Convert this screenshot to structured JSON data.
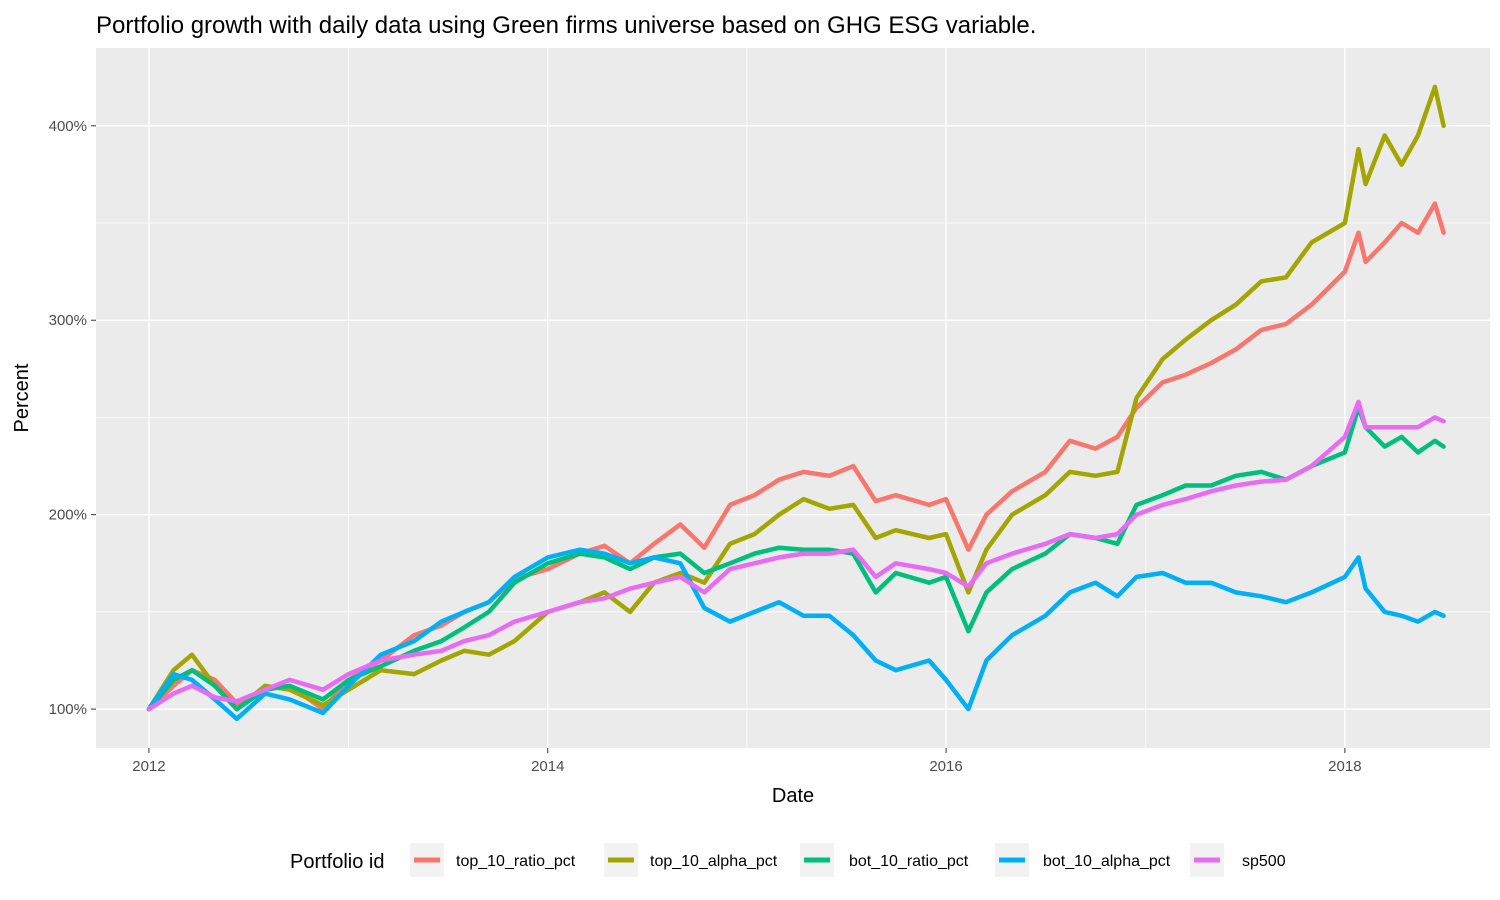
{
  "chart_data": {
    "type": "line",
    "title": "Portfolio growth with daily data using Green firms universe based on GHG ESG variable.",
    "xlabel": "Date",
    "ylabel": "Percent",
    "x_ticks": [
      "2012",
      "2014",
      "2016",
      "2018"
    ],
    "y_ticks": [
      "100%",
      "200%",
      "300%",
      "400%"
    ],
    "xlim": [
      "2011-09-26",
      "2018-09-24"
    ],
    "ylim": [
      80,
      440
    ],
    "grid": true,
    "legend_position": "bottom",
    "legend_title": "Portfolio id",
    "series": [
      {
        "name": "top_10_ratio_pct",
        "color": "#F8766D",
        "x": [
          "2012-01-01",
          "2012-02-15",
          "2012-03-20",
          "2012-05-01",
          "2012-06-10",
          "2012-08-01",
          "2012-09-15",
          "2012-11-15",
          "2013-01-01",
          "2013-03-01",
          "2013-05-01",
          "2013-06-20",
          "2013-08-01",
          "2013-09-15",
          "2013-11-01",
          "2014-01-01",
          "2014-03-01",
          "2014-04-15",
          "2014-06-01",
          "2014-07-15",
          "2014-09-01",
          "2014-10-15",
          "2014-12-01",
          "2015-01-15",
          "2015-03-01",
          "2015-04-15",
          "2015-06-01",
          "2015-07-15",
          "2015-08-25",
          "2015-10-01",
          "2015-12-01",
          "2016-01-01",
          "2016-02-11",
          "2016-03-15",
          "2016-05-01",
          "2016-07-01",
          "2016-08-15",
          "2016-10-01",
          "2016-11-10",
          "2016-12-15",
          "2017-02-01",
          "2017-03-15",
          "2017-05-01",
          "2017-06-15",
          "2017-08-01",
          "2017-09-15",
          "2017-11-01",
          "2018-01-01",
          "2018-01-26",
          "2018-02-08",
          "2018-03-15",
          "2018-04-15",
          "2018-05-15",
          "2018-06-15",
          "2018-07-01"
        ],
        "values": [
          100,
          112,
          120,
          115,
          103,
          110,
          112,
          100,
          115,
          125,
          138,
          143,
          150,
          155,
          167,
          172,
          180,
          184,
          175,
          185,
          195,
          183,
          205,
          210,
          218,
          222,
          220,
          225,
          207,
          210,
          205,
          208,
          182,
          200,
          212,
          222,
          238,
          234,
          240,
          255,
          268,
          272,
          278,
          285,
          295,
          298,
          308,
          325,
          345,
          330,
          340,
          350,
          345,
          360,
          345
        ]
      },
      {
        "name": "top_10_alpha_pct",
        "color": "#A3A500",
        "x": [
          "2012-01-01",
          "2012-02-15",
          "2012-03-20",
          "2012-05-01",
          "2012-06-10",
          "2012-08-01",
          "2012-09-15",
          "2012-11-15",
          "2013-01-01",
          "2013-03-01",
          "2013-05-01",
          "2013-06-20",
          "2013-08-01",
          "2013-09-15",
          "2013-11-01",
          "2014-01-01",
          "2014-03-01",
          "2014-04-15",
          "2014-06-01",
          "2014-07-15",
          "2014-09-01",
          "2014-10-15",
          "2014-12-01",
          "2015-01-15",
          "2015-03-01",
          "2015-04-15",
          "2015-06-01",
          "2015-07-15",
          "2015-08-25",
          "2015-10-01",
          "2015-12-01",
          "2016-01-01",
          "2016-02-11",
          "2016-03-15",
          "2016-05-01",
          "2016-07-01",
          "2016-08-15",
          "2016-10-01",
          "2016-11-10",
          "2016-12-15",
          "2017-02-01",
          "2017-03-15",
          "2017-05-01",
          "2017-06-15",
          "2017-08-01",
          "2017-09-15",
          "2017-11-01",
          "2018-01-01",
          "2018-01-26",
          "2018-02-08",
          "2018-03-15",
          "2018-04-15",
          "2018-05-15",
          "2018-06-15",
          "2018-07-01"
        ],
        "values": [
          100,
          120,
          128,
          112,
          100,
          112,
          110,
          102,
          110,
          120,
          118,
          125,
          130,
          128,
          135,
          150,
          155,
          160,
          150,
          165,
          170,
          165,
          185,
          190,
          200,
          208,
          203,
          205,
          188,
          192,
          188,
          190,
          160,
          182,
          200,
          210,
          222,
          220,
          222,
          260,
          280,
          290,
          300,
          308,
          320,
          322,
          340,
          350,
          388,
          370,
          395,
          380,
          395,
          420,
          400
        ]
      },
      {
        "name": "bot_10_ratio_pct",
        "color": "#00BF7D",
        "x": [
          "2012-01-01",
          "2012-02-15",
          "2012-03-20",
          "2012-05-01",
          "2012-06-10",
          "2012-08-01",
          "2012-09-15",
          "2012-11-15",
          "2013-01-01",
          "2013-03-01",
          "2013-05-01",
          "2013-06-20",
          "2013-08-01",
          "2013-09-15",
          "2013-11-01",
          "2014-01-01",
          "2014-03-01",
          "2014-04-15",
          "2014-06-01",
          "2014-07-15",
          "2014-09-01",
          "2014-10-15",
          "2014-12-01",
          "2015-01-15",
          "2015-03-01",
          "2015-04-15",
          "2015-06-01",
          "2015-07-15",
          "2015-08-25",
          "2015-10-01",
          "2015-12-01",
          "2016-01-01",
          "2016-02-11",
          "2016-03-15",
          "2016-05-01",
          "2016-07-01",
          "2016-08-15",
          "2016-10-01",
          "2016-11-10",
          "2016-12-15",
          "2017-02-01",
          "2017-03-15",
          "2017-05-01",
          "2017-06-15",
          "2017-08-01",
          "2017-09-15",
          "2017-11-01",
          "2018-01-01",
          "2018-01-26",
          "2018-02-08",
          "2018-03-15",
          "2018-04-15",
          "2018-05-15",
          "2018-06-15",
          "2018-07-01"
        ],
        "values": [
          100,
          115,
          120,
          112,
          100,
          110,
          112,
          105,
          115,
          122,
          130,
          135,
          142,
          150,
          165,
          175,
          180,
          178,
          172,
          178,
          180,
          170,
          175,
          180,
          183,
          182,
          182,
          180,
          160,
          170,
          165,
          168,
          140,
          160,
          172,
          180,
          190,
          188,
          185,
          205,
          210,
          215,
          215,
          220,
          222,
          218,
          225,
          232,
          255,
          245,
          235,
          240,
          232,
          238,
          235
        ]
      },
      {
        "name": "bot_10_alpha_pct",
        "color": "#00B0F6",
        "x": [
          "2012-01-01",
          "2012-02-15",
          "2012-03-20",
          "2012-05-01",
          "2012-06-10",
          "2012-08-01",
          "2012-09-15",
          "2012-11-15",
          "2013-01-01",
          "2013-03-01",
          "2013-05-01",
          "2013-06-20",
          "2013-08-01",
          "2013-09-15",
          "2013-11-01",
          "2014-01-01",
          "2014-03-01",
          "2014-04-15",
          "2014-06-01",
          "2014-07-15",
          "2014-09-01",
          "2014-10-15",
          "2014-12-01",
          "2015-01-15",
          "2015-03-01",
          "2015-04-15",
          "2015-06-01",
          "2015-07-15",
          "2015-08-25",
          "2015-10-01",
          "2015-12-01",
          "2016-01-01",
          "2016-02-11",
          "2016-03-15",
          "2016-05-01",
          "2016-07-01",
          "2016-08-15",
          "2016-10-01",
          "2016-11-10",
          "2016-12-15",
          "2017-02-01",
          "2017-03-15",
          "2017-05-01",
          "2017-06-15",
          "2017-08-01",
          "2017-09-15",
          "2017-11-01",
          "2018-01-01",
          "2018-01-26",
          "2018-02-08",
          "2018-03-15",
          "2018-04-15",
          "2018-05-15",
          "2018-06-15",
          "2018-07-01"
        ],
        "values": [
          100,
          118,
          115,
          105,
          95,
          108,
          105,
          98,
          112,
          128,
          135,
          145,
          150,
          155,
          168,
          178,
          182,
          180,
          175,
          178,
          175,
          152,
          145,
          150,
          155,
          148,
          148,
          138,
          125,
          120,
          125,
          115,
          100,
          125,
          138,
          148,
          160,
          165,
          158,
          168,
          170,
          165,
          165,
          160,
          158,
          155,
          160,
          168,
          178,
          162,
          150,
          148,
          145,
          150,
          148
        ]
      },
      {
        "name": "sp500",
        "color": "#E76BF3",
        "x": [
          "2012-01-01",
          "2012-02-15",
          "2012-03-20",
          "2012-05-01",
          "2012-06-10",
          "2012-08-01",
          "2012-09-15",
          "2012-11-15",
          "2013-01-01",
          "2013-03-01",
          "2013-05-01",
          "2013-06-20",
          "2013-08-01",
          "2013-09-15",
          "2013-11-01",
          "2014-01-01",
          "2014-03-01",
          "2014-04-15",
          "2014-06-01",
          "2014-07-15",
          "2014-09-01",
          "2014-10-15",
          "2014-12-01",
          "2015-01-15",
          "2015-03-01",
          "2015-04-15",
          "2015-06-01",
          "2015-07-15",
          "2015-08-25",
          "2015-10-01",
          "2015-12-01",
          "2016-01-01",
          "2016-02-11",
          "2016-03-15",
          "2016-05-01",
          "2016-07-01",
          "2016-08-15",
          "2016-10-01",
          "2016-11-10",
          "2016-12-15",
          "2017-02-01",
          "2017-03-15",
          "2017-05-01",
          "2017-06-15",
          "2017-08-01",
          "2017-09-15",
          "2017-11-01",
          "2018-01-01",
          "2018-01-26",
          "2018-02-08",
          "2018-03-15",
          "2018-04-15",
          "2018-05-15",
          "2018-06-15",
          "2018-07-01"
        ],
        "values": [
          100,
          108,
          112,
          106,
          104,
          110,
          115,
          110,
          118,
          125,
          128,
          130,
          135,
          138,
          145,
          150,
          155,
          157,
          162,
          165,
          168,
          160,
          172,
          175,
          178,
          180,
          180,
          182,
          168,
          175,
          172,
          170,
          163,
          175,
          180,
          185,
          190,
          188,
          190,
          200,
          205,
          208,
          212,
          215,
          217,
          218,
          225,
          240,
          258,
          245,
          245,
          245,
          245,
          250,
          248
        ]
      }
    ]
  }
}
